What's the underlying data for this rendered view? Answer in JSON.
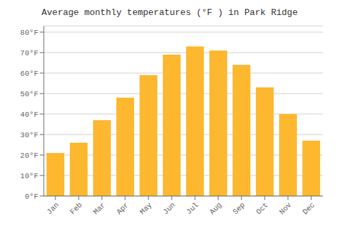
{
  "chart_data": {
    "type": "bar",
    "title": "Average monthly temperatures (°F ) in Park Ridge",
    "categories": [
      "Jan",
      "Feb",
      "Mar",
      "Apr",
      "May",
      "Jun",
      "Jul",
      "Aug",
      "Sep",
      "Oct",
      "Nov",
      "Dec"
    ],
    "values": [
      21,
      26,
      37,
      48,
      59,
      69,
      73,
      71,
      64,
      53,
      40,
      27
    ],
    "color": "#FDB830",
    "ylim": [
      0,
      83
    ],
    "yticks": [
      {
        "value": 0,
        "label": "0°F"
      },
      {
        "value": 10,
        "label": "10°F"
      },
      {
        "value": 20,
        "label": "20°F"
      },
      {
        "value": 30,
        "label": "30°F"
      },
      {
        "value": 40,
        "label": "40°F"
      },
      {
        "value": 50,
        "label": "50°F"
      },
      {
        "value": 60,
        "label": "60°F"
      },
      {
        "value": 70,
        "label": "70°F"
      },
      {
        "value": 80,
        "label": "80°F"
      }
    ],
    "grid": true
  }
}
